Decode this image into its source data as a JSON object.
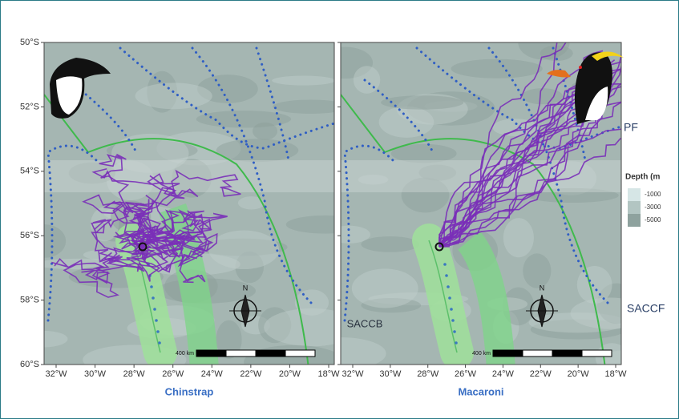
{
  "panels": [
    {
      "title": "Chinstrap",
      "scale_label": "400 km",
      "north_label": "N"
    },
    {
      "title": "Macaroni",
      "scale_label": "400 km",
      "north_label": "N",
      "annotation": "SACCB"
    }
  ],
  "lat_labels": [
    "50°S",
    "52°S",
    "54°S",
    "56°S",
    "58°S",
    "60°S"
  ],
  "lon_labels": [
    "32°W",
    "30°W",
    "28°W",
    "26°W",
    "24°W",
    "22°W",
    "20°W",
    "18°W"
  ],
  "front_labels": {
    "pf": "PF",
    "saccf": "SACCF"
  },
  "legend": {
    "title": "Depth (m",
    "levels": [
      "-1000",
      "-3000",
      "-5000"
    ]
  }
}
